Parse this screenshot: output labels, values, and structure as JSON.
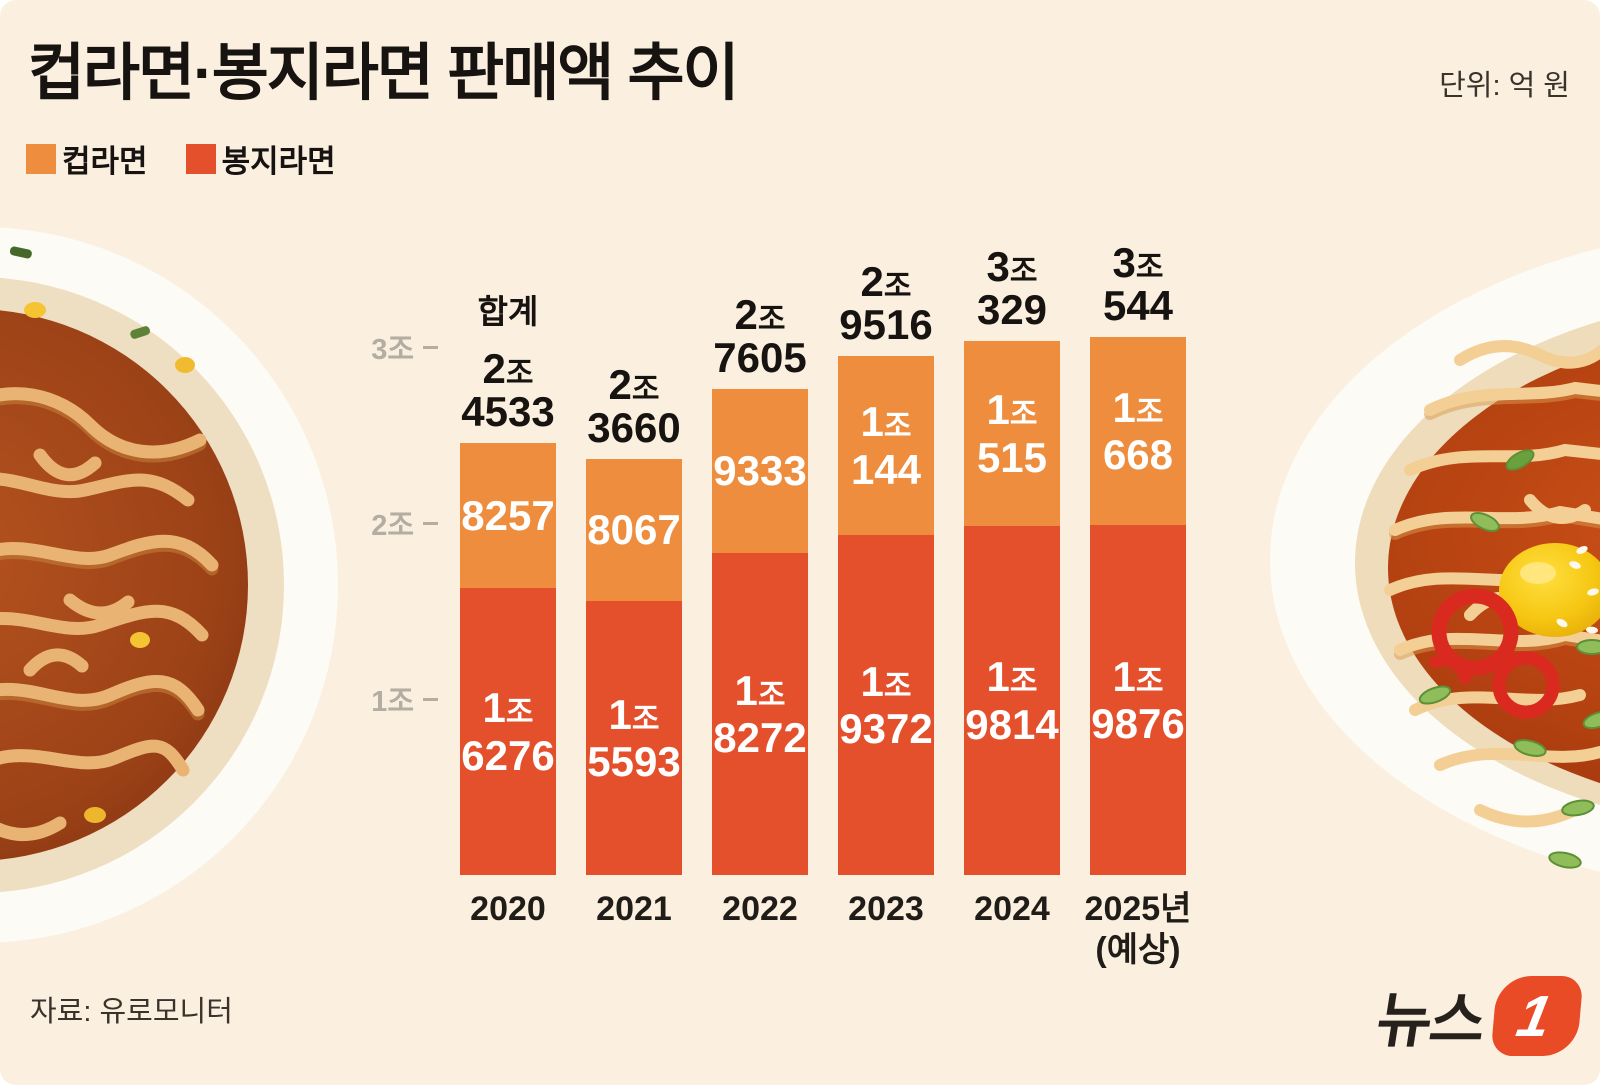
{
  "page": {
    "background": "#fbf0e0",
    "title": "컵라면·봉지라면 판매액 추이",
    "unit_label": "단위: 억 원",
    "source": "자료: 유로모니터",
    "logo_text": "뉴스",
    "logo_badge": "1"
  },
  "legend": {
    "items": [
      {
        "label": "컵라면",
        "color": "#ee8d3d"
      },
      {
        "label": "봉지라면",
        "color": "#e5502c"
      }
    ]
  },
  "chart_data": {
    "type": "bar",
    "stacked": true,
    "title": "컵라면·봉지라면 판매액 추이",
    "unit": "억 원",
    "categories": [
      "2020",
      "2021",
      "2022",
      "2023",
      "2024",
      "2025년(예상)"
    ],
    "series": [
      {
        "name": "컵라면",
        "color": "#ee8d3d",
        "values": [
          8257,
          8067,
          9333,
          10144,
          10515,
          10668
        ]
      },
      {
        "name": "봉지라면",
        "color": "#e5502c",
        "values": [
          16276,
          15593,
          18272,
          19372,
          19814,
          19876
        ]
      }
    ],
    "totals": [
      24533,
      23660,
      27605,
      29516,
      30329,
      30544
    ],
    "total_header": "합계",
    "yticks": [
      {
        "label": "1조",
        "value": 10000
      },
      {
        "label": "2조",
        "value": 20000
      },
      {
        "label": "3조",
        "value": 30000
      }
    ],
    "ylim": [
      0,
      35000
    ],
    "grid": false,
    "legend_position": "top-left",
    "bars": [
      {
        "year_lines": [
          "2020"
        ],
        "total_lines": [
          "2조",
          "4533"
        ],
        "cup_lines": [
          "8257"
        ],
        "bag_lines": [
          "1조",
          "6276"
        ]
      },
      {
        "year_lines": [
          "2021"
        ],
        "total_lines": [
          "2조",
          "3660"
        ],
        "cup_lines": [
          "8067"
        ],
        "bag_lines": [
          "1조",
          "5593"
        ]
      },
      {
        "year_lines": [
          "2022"
        ],
        "total_lines": [
          "2조",
          "7605"
        ],
        "cup_lines": [
          "9333"
        ],
        "bag_lines": [
          "1조",
          "8272"
        ]
      },
      {
        "year_lines": [
          "2023"
        ],
        "total_lines": [
          "2조",
          "9516"
        ],
        "cup_lines": [
          "1조",
          "144"
        ],
        "bag_lines": [
          "1조",
          "9372"
        ]
      },
      {
        "year_lines": [
          "2024"
        ],
        "total_lines": [
          "3조",
          "329"
        ],
        "cup_lines": [
          "1조",
          "515"
        ],
        "bag_lines": [
          "1조",
          "9814"
        ]
      },
      {
        "year_lines": [
          "2025년",
          "(예상)"
        ],
        "total_lines": [
          "3조",
          "544"
        ],
        "cup_lines": [
          "1조",
          "668"
        ],
        "bag_lines": [
          "1조",
          "9876"
        ]
      }
    ]
  }
}
